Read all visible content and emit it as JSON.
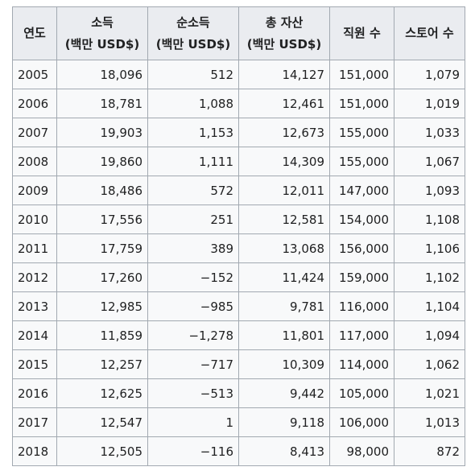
{
  "table": {
    "headers": [
      {
        "line1": "연도",
        "line2": ""
      },
      {
        "line1": "소득",
        "line2": "(백만 USD$)"
      },
      {
        "line1": "순소득",
        "line2": "(백만 USD$)"
      },
      {
        "line1": "총 자산",
        "line2": "(백만 USD$)"
      },
      {
        "line1": "직원 수",
        "line2": ""
      },
      {
        "line1": "스토어 수",
        "line2": ""
      }
    ],
    "rows": [
      [
        "2005",
        "18,096",
        "512",
        "14,127",
        "151,000",
        "1,079"
      ],
      [
        "2006",
        "18,781",
        "1,088",
        "12,461",
        "151,000",
        "1,019"
      ],
      [
        "2007",
        "19,903",
        "1,153",
        "12,673",
        "155,000",
        "1,033"
      ],
      [
        "2008",
        "19,860",
        "1,111",
        "14,309",
        "155,000",
        "1,067"
      ],
      [
        "2009",
        "18,486",
        "572",
        "12,011",
        "147,000",
        "1,093"
      ],
      [
        "2010",
        "17,556",
        "251",
        "12,581",
        "154,000",
        "1,108"
      ],
      [
        "2011",
        "17,759",
        "389",
        "13,068",
        "156,000",
        "1,106"
      ],
      [
        "2012",
        "17,260",
        "−152",
        "11,424",
        "159,000",
        "1,102"
      ],
      [
        "2013",
        "12,985",
        "−985",
        "9,781",
        "116,000",
        "1,104"
      ],
      [
        "2014",
        "11,859",
        "−1,278",
        "11,801",
        "117,000",
        "1,094"
      ],
      [
        "2015",
        "12,257",
        "−717",
        "10,309",
        "114,000",
        "1,062"
      ],
      [
        "2016",
        "12,625",
        "−513",
        "9,442",
        "105,000",
        "1,021"
      ],
      [
        "2017",
        "12,547",
        "1",
        "9,118",
        "106,000",
        "1,013"
      ],
      [
        "2018",
        "12,505",
        "−116",
        "8,413",
        "98,000",
        "872"
      ]
    ]
  }
}
